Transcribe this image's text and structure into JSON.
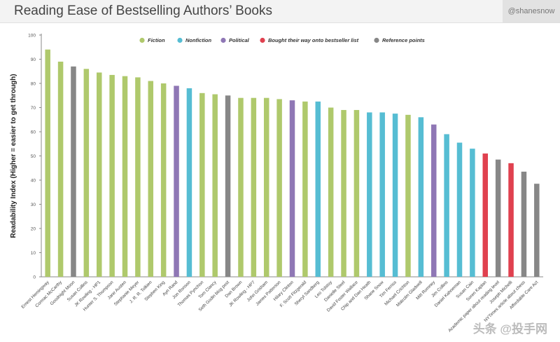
{
  "header": {
    "title": "Reading Ease of Bestselling Authors’ Books",
    "handle": "@shanesnow"
  },
  "watermark": "头条 @投手网",
  "colors": {
    "Fiction": "#afc96c",
    "Nonfiction": "#56bdd3",
    "Political": "#8f77b5",
    "Bought": "#e0414f",
    "Reference": "#878787"
  },
  "chart_data": {
    "type": "bar",
    "title": "Reading Ease of Bestselling Authors’ Books",
    "xlabel": "",
    "ylabel": "Readability Index (Higher = easier to get through)",
    "ylim": [
      0,
      100
    ],
    "yticks": [
      0,
      10,
      20,
      30,
      40,
      50,
      60,
      70,
      80,
      90,
      100
    ],
    "grid": false,
    "legend_position": "top",
    "legend": [
      {
        "key": "Fiction",
        "label": "Fiction"
      },
      {
        "key": "Nonfiction",
        "label": "Nonfiction"
      },
      {
        "key": "Political",
        "label": "Political"
      },
      {
        "key": "Bought",
        "label": "Bought their way onto bestseller list"
      },
      {
        "key": "Reference",
        "label": "Reference points"
      }
    ],
    "categories": [
      "Ernest Hemingway",
      "Cormac McCarthy",
      "Goodnight Moon",
      "Susan Collins",
      "JK Rowling - HP1",
      "Hunter S. Thompson",
      "Jane Austen",
      "Stephanie Meyer",
      "J. R. R. Tolkien",
      "Stephen King",
      "Ayn Rand",
      "Jon Ronson",
      "Thomas Pynchon",
      "Tom Clancy",
      "Seth Godin blog post",
      "Dan Brown",
      "JK Rowling - HP7",
      "John Grisham",
      "James Patterson",
      "Hilary Clinton",
      "F. Scott Fitzgerald",
      "Sheryl Sandberg",
      "Leo Tolstoy",
      "Danielle Steel",
      "David Foster Wallace",
      "Chip and Dan Heath",
      "Shane Snow",
      "Tim Ferriss",
      "Michael Crichton",
      "Malcolm Gladwell",
      "Mitt Romney",
      "Jim Collins",
      "Daniel Kahneman",
      "Susan Cain",
      "Soren Kaplan",
      "Academic paper about reading level",
      "Joseph Michelli",
      "NYTimes article about chess",
      "Affordable Care Act"
    ],
    "values": [
      94,
      89,
      87,
      86,
      84.5,
      83.5,
      83,
      82.5,
      81,
      80,
      79,
      78,
      76,
      75.5,
      75,
      74,
      74,
      74,
      73.5,
      73,
      72.5,
      72.5,
      70,
      69,
      69,
      68,
      68,
      67.5,
      67,
      66,
      63,
      59,
      55.5,
      53,
      51,
      48.5,
      47,
      43.5,
      38.5
    ],
    "groups": [
      "Fiction",
      "Fiction",
      "Reference",
      "Fiction",
      "Fiction",
      "Fiction",
      "Fiction",
      "Fiction",
      "Fiction",
      "Fiction",
      "Political",
      "Nonfiction",
      "Fiction",
      "Fiction",
      "Reference",
      "Fiction",
      "Fiction",
      "Fiction",
      "Fiction",
      "Political",
      "Fiction",
      "Nonfiction",
      "Fiction",
      "Fiction",
      "Fiction",
      "Nonfiction",
      "Nonfiction",
      "Nonfiction",
      "Fiction",
      "Nonfiction",
      "Political",
      "Nonfiction",
      "Nonfiction",
      "Nonfiction",
      "Bought",
      "Reference",
      "Bought",
      "Reference",
      "Reference"
    ]
  }
}
